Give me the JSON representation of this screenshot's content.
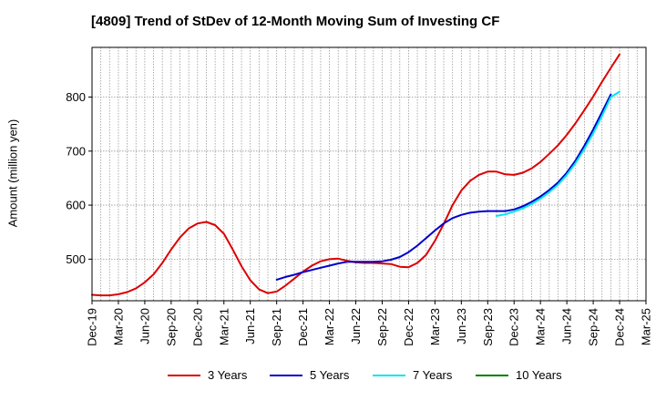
{
  "chart_data": {
    "type": "line",
    "title": "[4809]  Trend of StDev of 12-Month Moving Sum of Investing CF",
    "xlabel": "",
    "ylabel": "Amount (million yen)",
    "ylim": [
      423,
      892
    ],
    "y_ticks": [
      500,
      600,
      700,
      800
    ],
    "x_tick_labels": [
      "Dec-19",
      "Mar-20",
      "Jun-20",
      "Sep-20",
      "Dec-20",
      "Mar-21",
      "Jun-21",
      "Sep-21",
      "Dec-21",
      "Mar-22",
      "Jun-22",
      "Sep-22",
      "Dec-22",
      "Mar-23",
      "Jun-23",
      "Sep-23",
      "Dec-23",
      "Mar-24",
      "Jun-24",
      "Sep-24",
      "Dec-24",
      "Mar-25"
    ],
    "x_range_months": [
      0,
      63
    ],
    "grid": true,
    "legend_position": "bottom",
    "series": [
      {
        "name": "3 Years",
        "color": "#dd0000",
        "values": [
          [
            0,
            434
          ],
          [
            1,
            433
          ],
          [
            2,
            433
          ],
          [
            3,
            435
          ],
          [
            4,
            439
          ],
          [
            5,
            446
          ],
          [
            6,
            457
          ],
          [
            7,
            472
          ],
          [
            8,
            493
          ],
          [
            9,
            518
          ],
          [
            10,
            540
          ],
          [
            11,
            557
          ],
          [
            12,
            566
          ],
          [
            13,
            569
          ],
          [
            14,
            563
          ],
          [
            15,
            547
          ],
          [
            16,
            518
          ],
          [
            17,
            487
          ],
          [
            18,
            461
          ],
          [
            19,
            444
          ],
          [
            20,
            437
          ],
          [
            21,
            440
          ],
          [
            22,
            451
          ],
          [
            23,
            464
          ],
          [
            24,
            477
          ],
          [
            25,
            488
          ],
          [
            26,
            496
          ],
          [
            27,
            500
          ],
          [
            28,
            501
          ],
          [
            29,
            497
          ],
          [
            30,
            494
          ],
          [
            31,
            493
          ],
          [
            32,
            493
          ],
          [
            33,
            492
          ],
          [
            34,
            491
          ],
          [
            35,
            486
          ],
          [
            36,
            485
          ],
          [
            37,
            493
          ],
          [
            38,
            508
          ],
          [
            39,
            534
          ],
          [
            40,
            565
          ],
          [
            41,
            600
          ],
          [
            42,
            627
          ],
          [
            43,
            645
          ],
          [
            44,
            656
          ],
          [
            45,
            662
          ],
          [
            46,
            662
          ],
          [
            47,
            657
          ],
          [
            48,
            656
          ],
          [
            49,
            660
          ],
          [
            50,
            668
          ],
          [
            51,
            680
          ],
          [
            52,
            695
          ],
          [
            53,
            711
          ],
          [
            54,
            730
          ],
          [
            55,
            752
          ],
          [
            56,
            776
          ],
          [
            57,
            801
          ],
          [
            58,
            828
          ],
          [
            59,
            854
          ],
          [
            60,
            879
          ]
        ]
      },
      {
        "name": "5 Years",
        "color": "#0000cc",
        "values": [
          [
            21,
            462
          ],
          [
            22,
            467
          ],
          [
            23,
            471
          ],
          [
            24,
            476
          ],
          [
            25,
            480
          ],
          [
            26,
            484
          ],
          [
            27,
            488
          ],
          [
            28,
            492
          ],
          [
            29,
            495
          ],
          [
            30,
            495
          ],
          [
            31,
            495
          ],
          [
            32,
            495
          ],
          [
            33,
            496
          ],
          [
            34,
            499
          ],
          [
            35,
            504
          ],
          [
            36,
            513
          ],
          [
            37,
            525
          ],
          [
            38,
            539
          ],
          [
            39,
            553
          ],
          [
            40,
            566
          ],
          [
            41,
            576
          ],
          [
            42,
            582
          ],
          [
            43,
            586
          ],
          [
            44,
            588
          ],
          [
            45,
            589
          ],
          [
            46,
            589
          ],
          [
            47,
            589
          ],
          [
            48,
            592
          ],
          [
            49,
            598
          ],
          [
            50,
            606
          ],
          [
            51,
            616
          ],
          [
            52,
            628
          ],
          [
            53,
            642
          ],
          [
            54,
            660
          ],
          [
            55,
            683
          ],
          [
            56,
            710
          ],
          [
            57,
            740
          ],
          [
            58,
            772
          ],
          [
            59,
            805
          ]
        ]
      },
      {
        "name": "7 Years",
        "color": "#00e5ee",
        "values": [
          [
            46,
            580
          ],
          [
            47,
            583
          ],
          [
            48,
            588
          ],
          [
            49,
            594
          ],
          [
            50,
            602
          ],
          [
            51,
            612
          ],
          [
            52,
            624
          ],
          [
            53,
            638
          ],
          [
            54,
            656
          ],
          [
            55,
            678
          ],
          [
            56,
            704
          ],
          [
            57,
            733
          ],
          [
            58,
            765
          ],
          [
            59,
            800
          ],
          [
            60,
            810
          ]
        ]
      },
      {
        "name": "10 Years",
        "color": "#008000",
        "values": []
      }
    ]
  }
}
